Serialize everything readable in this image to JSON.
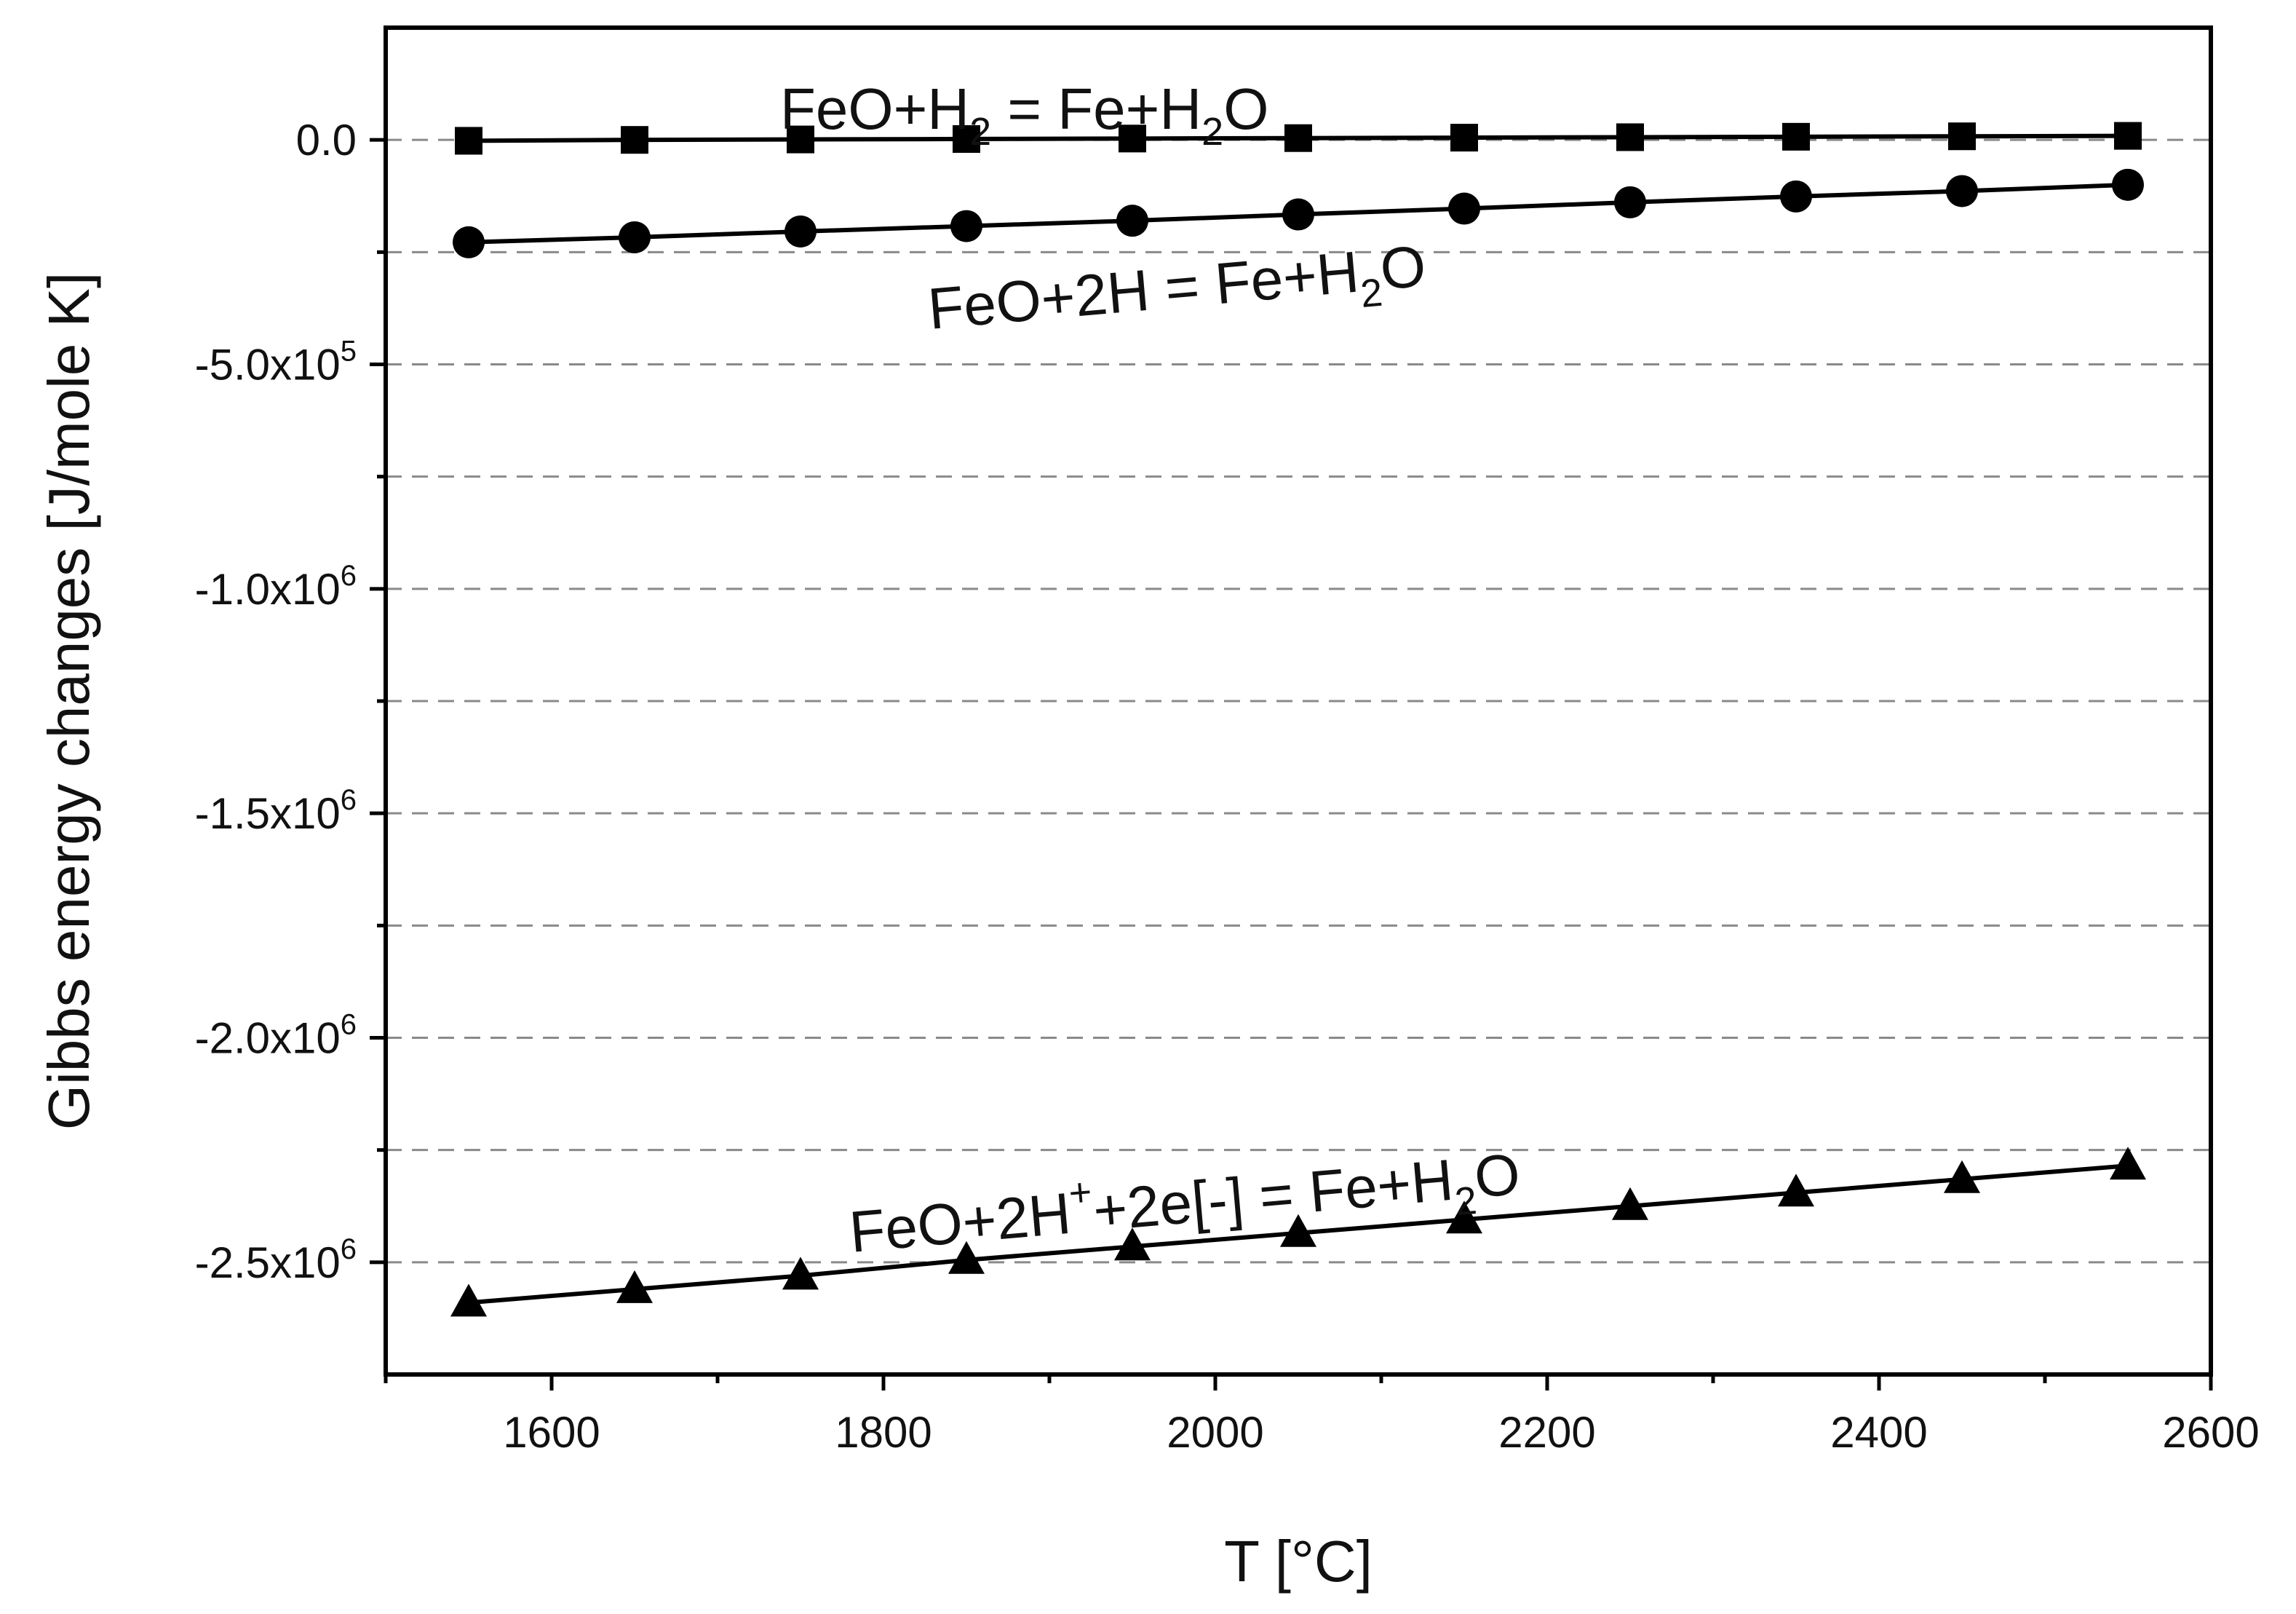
{
  "chart_data": {
    "type": "scatter",
    "xlabel": "T [°C]",
    "ylabel": "Gibbs energy changes [J/mole K]",
    "xlim": [
      1500,
      2600
    ],
    "ylim": [
      -2750000,
      250000
    ],
    "x_ticks": [
      {
        "value": 1600,
        "label": "1600"
      },
      {
        "value": 1800,
        "label": "1800"
      },
      {
        "value": 2000,
        "label": "2000"
      },
      {
        "value": 2200,
        "label": "2200"
      },
      {
        "value": 2400,
        "label": "2400"
      },
      {
        "value": 2600,
        "label": "2600"
      }
    ],
    "y_ticks": [
      {
        "value": 0,
        "mantissa": "0.0",
        "exp": ""
      },
      {
        "value": -500000,
        "mantissa": "-5.0x10",
        "exp": "5"
      },
      {
        "value": -1000000,
        "mantissa": "-1.0x10",
        "exp": "6"
      },
      {
        "value": -1500000,
        "mantissa": "-1.5x10",
        "exp": "6"
      },
      {
        "value": -2000000,
        "mantissa": "-2.0x10",
        "exp": "6"
      },
      {
        "value": -2500000,
        "mantissa": "-2.5x10",
        "exp": "6"
      }
    ],
    "grid": "horizontal-dashed",
    "x": [
      1550,
      1650,
      1750,
      1850,
      1950,
      2050,
      2150,
      2250,
      2350,
      2450,
      2550
    ],
    "series": [
      {
        "marker": "square",
        "values": [
          -2000,
          0,
          1000,
          2000,
          3000,
          4000,
          5000,
          6000,
          7000,
          8000,
          9000
        ]
      },
      {
        "marker": "circle",
        "values": [
          -228000,
          -217000,
          -204000,
          -192000,
          -180000,
          -166000,
          -153000,
          -139000,
          -126000,
          -114000,
          -100000
        ]
      },
      {
        "marker": "triangle",
        "values": [
          -2590000,
          -2560000,
          -2530000,
          -2495000,
          -2465000,
          -2435000,
          -2405000,
          -2375000,
          -2345000,
          -2315000,
          -2285000
        ]
      }
    ],
    "annotations": [
      {
        "parts": [
          "FeO+H",
          "2",
          " = Fe+H",
          "2",
          "O"
        ]
      },
      {
        "parts": [
          "FeO+2H = Fe+H",
          "2",
          "O"
        ]
      },
      {
        "parts": [
          "FeO+2H",
          "+",
          "+2e[-] = Fe+H",
          "2",
          "O"
        ]
      }
    ]
  }
}
